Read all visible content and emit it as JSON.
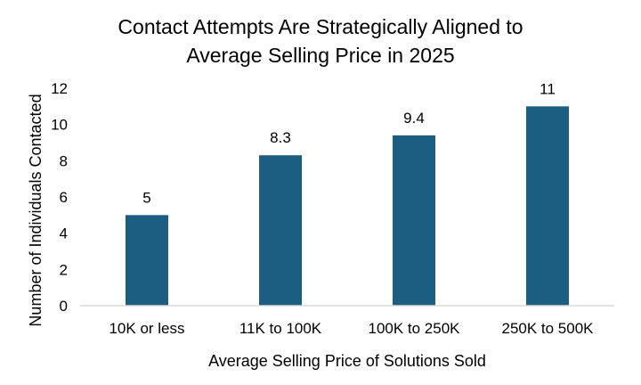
{
  "chart_data": {
    "type": "bar",
    "title": [
      "Contact Attempts Are Strategically Aligned to",
      "Average Selling Price in 2025"
    ],
    "categories": [
      "10K or less",
      "11K to 100K",
      "100K to 250K",
      "250K to 500K"
    ],
    "values": [
      5,
      8.3,
      9.4,
      11
    ],
    "data_labels": [
      "5",
      "8.3",
      "9.4",
      "11"
    ],
    "xlabel": "Average Selling Price of Solutions Sold",
    "ylabel": "Number of Individuals Contacted",
    "ylim": [
      0,
      12
    ],
    "yticks": [
      0,
      2,
      4,
      6,
      8,
      10,
      12
    ],
    "bar_color": "#1b5e82",
    "axis_color": "#d9d9d9",
    "grid": false,
    "legend": "none"
  }
}
